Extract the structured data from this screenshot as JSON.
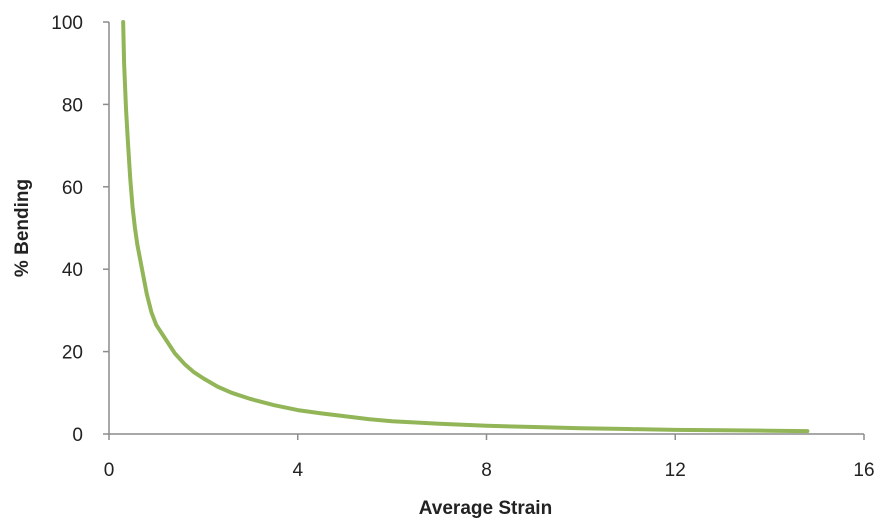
{
  "chart_data": {
    "type": "line",
    "xlabel": "Average Strain",
    "ylabel": "% Bending",
    "xlim": [
      0,
      16
    ],
    "ylim": [
      0,
      100
    ],
    "x_ticks": [
      "0",
      "4",
      "8",
      "12",
      "16"
    ],
    "y_ticks": [
      "0",
      "20",
      "40",
      "60",
      "80",
      "100"
    ],
    "grid": false,
    "legend": "none",
    "series": [
      {
        "color": "#92b558",
        "points": [
          [
            0.3,
            100
          ],
          [
            0.32,
            90
          ],
          [
            0.36,
            79
          ],
          [
            0.4,
            71
          ],
          [
            0.45,
            62
          ],
          [
            0.5,
            55
          ],
          [
            0.55,
            50
          ],
          [
            0.6,
            46
          ],
          [
            0.7,
            40
          ],
          [
            0.8,
            34
          ],
          [
            0.9,
            29.5
          ],
          [
            1.0,
            26.5
          ],
          [
            1.2,
            23
          ],
          [
            1.4,
            19.5
          ],
          [
            1.6,
            17
          ],
          [
            1.8,
            15
          ],
          [
            2.0,
            13.5
          ],
          [
            2.3,
            11.5
          ],
          [
            2.6,
            10
          ],
          [
            3.0,
            8.5
          ],
          [
            3.5,
            7
          ],
          [
            4.0,
            5.8
          ],
          [
            4.5,
            5
          ],
          [
            5.0,
            4.3
          ],
          [
            5.5,
            3.6
          ],
          [
            6.0,
            3.1
          ],
          [
            7.0,
            2.5
          ],
          [
            8.0,
            2.0
          ],
          [
            9.0,
            1.7
          ],
          [
            10.0,
            1.4
          ],
          [
            11.0,
            1.2
          ],
          [
            12.0,
            1.0
          ],
          [
            13.0,
            0.9
          ],
          [
            14.0,
            0.8
          ],
          [
            14.8,
            0.7
          ]
        ]
      }
    ]
  }
}
